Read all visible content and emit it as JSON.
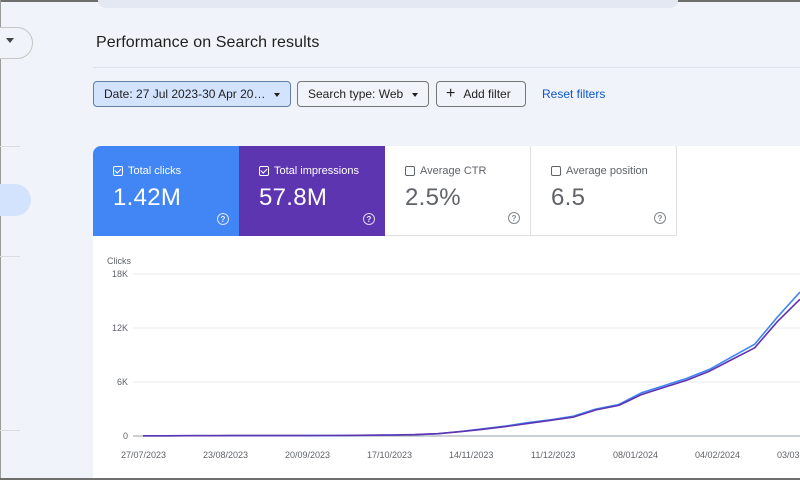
{
  "page": {
    "title": "Performance on Search results"
  },
  "filters": {
    "date_label": "Date: 27 Jul 2023-30 Apr 20…",
    "search_type_label": "Search type: Web",
    "add_filter_label": "Add filter",
    "reset_label": "Reset filters"
  },
  "icons": {
    "date_caret": "chevron-down-icon",
    "search_caret": "chevron-down-icon",
    "add": "plus-icon",
    "help": "help-circle-icon",
    "checkbox": "checkbox-icon"
  },
  "metrics": [
    {
      "label": "Total clicks",
      "value": "1.42M",
      "checked": true,
      "color": "#4285f4"
    },
    {
      "label": "Total impressions",
      "value": "57.8M",
      "checked": true,
      "color": "#5e35b1"
    },
    {
      "label": "Average CTR",
      "value": "2.5%",
      "checked": false,
      "color": "#ffffff"
    },
    {
      "label": "Average position",
      "value": "6.5",
      "checked": false,
      "color": "#ffffff"
    }
  ],
  "help_glyph": "?",
  "chart_data": {
    "type": "line",
    "ylabel": "Clicks",
    "ylim": [
      0,
      18000
    ],
    "y_ticks": [
      "0",
      "6K",
      "12K",
      "18K"
    ],
    "y_tick_values": [
      0,
      6000,
      12000,
      18000
    ],
    "x_ticks": [
      "27/07/2023",
      "23/08/2023",
      "20/09/2023",
      "17/10/2023",
      "14/11/2023",
      "11/12/2023",
      "08/01/2024",
      "04/02/2024",
      "03/03"
    ],
    "grid": true,
    "series": [
      {
        "color": "#4285f4",
        "values": [
          20,
          20,
          30,
          30,
          40,
          40,
          40,
          50,
          50,
          60,
          80,
          100,
          150,
          250,
          500,
          800,
          1100,
          1500,
          1800,
          2200,
          3000,
          3500,
          4800,
          5600,
          6400,
          7400,
          8800,
          10200,
          13200,
          16000
        ]
      },
      {
        "color": "#5e35b1",
        "values": [
          25,
          25,
          30,
          35,
          40,
          40,
          45,
          50,
          55,
          65,
          85,
          110,
          160,
          260,
          480,
          750,
          1050,
          1400,
          1750,
          2100,
          2900,
          3400,
          4600,
          5400,
          6200,
          7200,
          8500,
          9800,
          12700,
          15200
        ]
      }
    ]
  }
}
